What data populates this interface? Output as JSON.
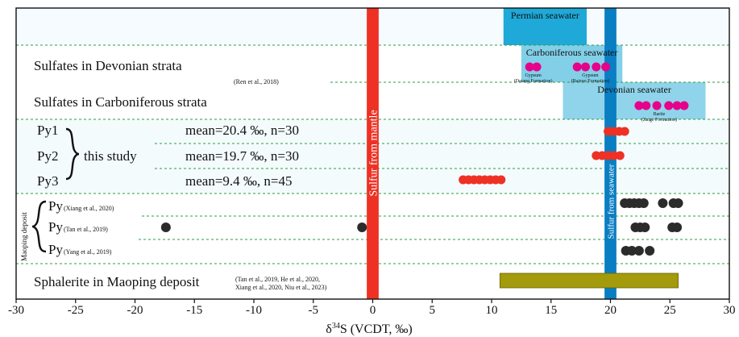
{
  "chart_data": {
    "type": "range",
    "xlim": [
      -30,
      30
    ],
    "x_ticks": [
      -30,
      -25,
      -20,
      -15,
      -10,
      -5,
      0,
      5,
      10,
      15,
      20,
      25,
      30
    ],
    "xlabel_delta": "δ",
    "xlabel_sup": "34",
    "xlabel_rest": "S (VCDT, ‰)",
    "vertical_bands": [
      {
        "label": "Sulfur from mantle",
        "from": -0.5,
        "to": 0.5,
        "color": "#ee3124"
      },
      {
        "label": "Sulfur from seawater",
        "from": 19.5,
        "to": 20.5,
        "color": "#0a7ec2"
      }
    ],
    "seawater_boxes": [
      {
        "label": "Permian seawater",
        "from": 11,
        "to": 18,
        "color": "#1ea9d8",
        "row": 0
      },
      {
        "label": "Carboniferous seawater",
        "from": 12.5,
        "to": 21,
        "color": "#82cfe8",
        "row": 1
      },
      {
        "label": "Devonian seawater",
        "from": 16,
        "to": 28,
        "color": "#8fd4ea",
        "row": 2
      }
    ],
    "sulfate_points": [
      {
        "group": "Gypsum (Datang Formation)",
        "x": [
          13.2,
          13.8
        ],
        "label1": "Gypsum",
        "label2": "(Datang Formation)",
        "label_x": 13.5
      },
      {
        "group": "Gypsum (Baizuo Formation)",
        "x": [
          17.2,
          17.9,
          18.8,
          19.6
        ],
        "label1": "Gypsum",
        "label2": "(Baizuo Formation)",
        "label_x": 18.3
      },
      {
        "group": "Barite (Zaige Formation)",
        "x": [
          22.4,
          23.0,
          23.9,
          24.9,
          25.6,
          26.2
        ],
        "label1": "Barite",
        "label2": "(Zaige Formation)",
        "label_x": 24.1
      }
    ],
    "rows": {
      "devonian_sulfates": "Sulfates in Devonian strata",
      "ren_ref": "(Ren et al., 2018)",
      "carboniferous_sulfates": "Sulfates in Carboniferous strata",
      "py1": "Py1",
      "py2": "Py2",
      "py3": "Py3",
      "this_study": "this study",
      "py1_stat": "mean=20.4 ‰, n=30",
      "py2_stat": "mean=19.7 ‰, n=30",
      "py3_stat": "mean=9.4 ‰, n=45",
      "maoping_deposit": "Maoping deposit",
      "py_label": "Py",
      "xiang_ref": "(Xiang et al., 2020)",
      "tan_ref": "(Tan et al., 2019)",
      "yang_ref": "(Yang et al., 2019)",
      "sphalerite": "Sphalerite in Maoping deposit",
      "sph_ref1": "(Tan et al., 2019, He et al., 2020,",
      "sph_ref2": "Xiang et al., 2020, Niu et al., 2023)"
    },
    "pyrite_this_study": [
      {
        "name": "Py1",
        "min": 19.8,
        "max": 21.2,
        "color": "#ee3124"
      },
      {
        "name": "Py2",
        "min": 18.8,
        "max": 20.8,
        "color": "#ee3124"
      },
      {
        "name": "Py3",
        "min": 7.6,
        "max": 10.8,
        "color": "#ee3124"
      }
    ],
    "pyrite_literature": [
      {
        "name": "Py (Xiang et al., 2020)",
        "x": [
          21.2,
          21.6,
          22.0,
          22.4,
          22.8,
          24.4,
          25.3,
          25.7
        ],
        "color": "#2b2b2b"
      },
      {
        "name": "Py (Tan et al., 2019)",
        "x": [
          -17.4,
          -0.9,
          22.1,
          22.5,
          22.9,
          25.2,
          25.6
        ],
        "color": "#2b2b2b"
      },
      {
        "name": "Py (Yang et al., 2019)",
        "x": [
          21.3,
          21.8,
          22.4,
          23.3
        ],
        "color": "#2b2b2b"
      }
    ],
    "sphalerite_range": {
      "min": 10.7,
      "max": 25.7,
      "color": "#a39a0c"
    }
  }
}
